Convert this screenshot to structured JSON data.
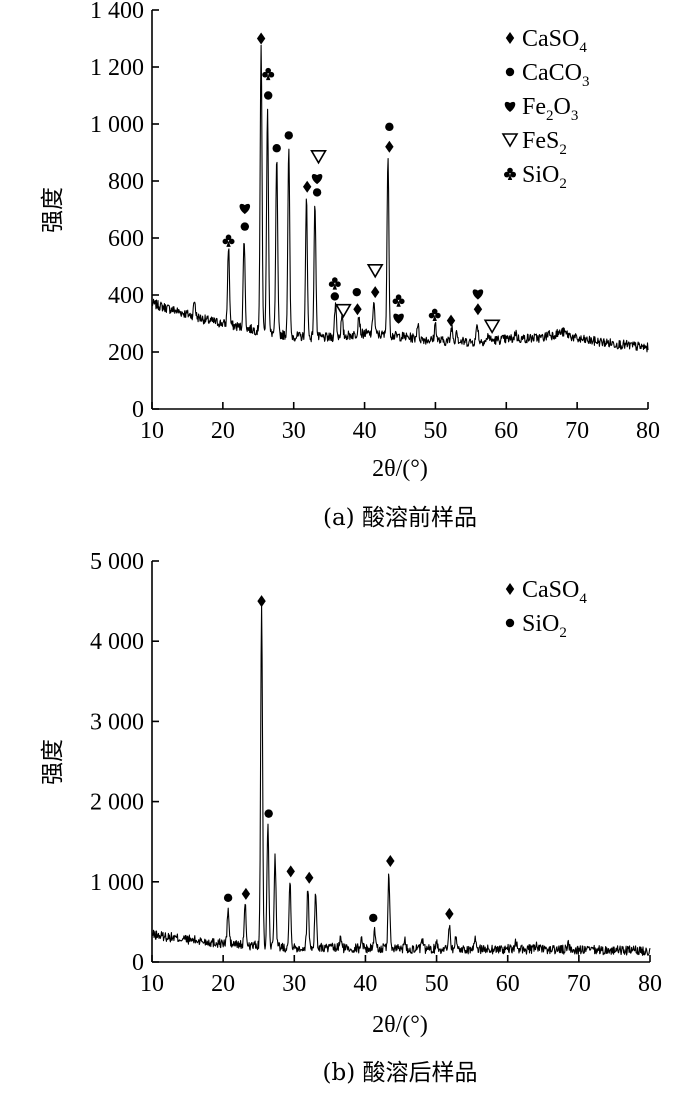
{
  "chart_data": [
    {
      "type": "line",
      "caption": "(a) 酸溶前样品",
      "xlabel": "2θ/(°)",
      "ylabel": "强度",
      "xlim": [
        10,
        80
      ],
      "ylim": [
        0,
        1400
      ],
      "xticks": [
        10,
        20,
        30,
        40,
        50,
        60,
        70,
        80
      ],
      "xtick_labels": [
        "10",
        "20",
        "30",
        "40",
        "50",
        "60",
        "70",
        "80"
      ],
      "yticks": [
        0,
        200,
        400,
        600,
        800,
        1000,
        1200,
        1400
      ],
      "ytick_labels": [
        "0",
        "200",
        "400",
        "600",
        "800",
        "1 000",
        "1 200",
        "1 400"
      ],
      "legend_position": "top-right",
      "legend": [
        {
          "symbol": "diamond",
          "name": "CaSO",
          "sub": "4"
        },
        {
          "symbol": "circle",
          "name": "CaCO",
          "sub": "3"
        },
        {
          "symbol": "heart",
          "name": "Fe",
          "sub": "2",
          "name2": "O",
          "sub2": "3"
        },
        {
          "symbol": "triangle-down",
          "name": "FeS",
          "sub": "2"
        },
        {
          "symbol": "club",
          "name": "SiO",
          "sub": "2"
        }
      ],
      "baseline": [
        [
          10,
          370
        ],
        [
          14,
          340
        ],
        [
          18,
          310
        ],
        [
          22,
          290
        ],
        [
          26,
          270
        ],
        [
          30,
          255
        ],
        [
          35,
          250
        ],
        [
          40,
          265
        ],
        [
          45,
          255
        ],
        [
          50,
          240
        ],
        [
          55,
          235
        ],
        [
          60,
          245
        ],
        [
          65,
          250
        ],
        [
          68,
          270
        ],
        [
          70,
          245
        ],
        [
          75,
          230
        ],
        [
          80,
          215
        ]
      ],
      "peaks": [
        {
          "x": 16.0,
          "y": 380
        },
        {
          "x": 20.8,
          "y": 570
        },
        {
          "x": 23.0,
          "y": 600
        },
        {
          "x": 25.4,
          "y": 1260
        },
        {
          "x": 26.3,
          "y": 1060
        },
        {
          "x": 27.6,
          "y": 880
        },
        {
          "x": 29.3,
          "y": 910
        },
        {
          "x": 31.8,
          "y": 740
        },
        {
          "x": 33.0,
          "y": 720
        },
        {
          "x": 35.9,
          "y": 370
        },
        {
          "x": 36.8,
          "y": 320
        },
        {
          "x": 39.2,
          "y": 330
        },
        {
          "x": 41.3,
          "y": 380
        },
        {
          "x": 43.3,
          "y": 880
        },
        {
          "x": 47.5,
          "y": 300
        },
        {
          "x": 50.0,
          "y": 300
        },
        {
          "x": 52.3,
          "y": 290
        },
        {
          "x": 53.0,
          "y": 280
        },
        {
          "x": 55.9,
          "y": 300
        },
        {
          "x": 57.5,
          "y": 260
        },
        {
          "x": 61.3,
          "y": 270
        },
        {
          "x": 66.0,
          "y": 270
        }
      ],
      "markers": [
        {
          "symbol": "club",
          "x": 20.8,
          "y": 590
        },
        {
          "symbol": "heart",
          "x": 23.1,
          "y": 705
        },
        {
          "symbol": "circle",
          "x": 23.1,
          "y": 640
        },
        {
          "symbol": "diamond",
          "x": 25.4,
          "y": 1300
        },
        {
          "symbol": "club",
          "x": 26.4,
          "y": 1175
        },
        {
          "symbol": "circle",
          "x": 26.4,
          "y": 1100
        },
        {
          "symbol": "circle",
          "x": 27.6,
          "y": 915
        },
        {
          "symbol": "circle",
          "x": 29.3,
          "y": 960
        },
        {
          "symbol": "diamond",
          "x": 31.9,
          "y": 780
        },
        {
          "symbol": "triangle-down",
          "x": 33.5,
          "y": 885
        },
        {
          "symbol": "heart",
          "x": 33.3,
          "y": 810
        },
        {
          "symbol": "circle",
          "x": 33.3,
          "y": 760
        },
        {
          "symbol": "club",
          "x": 35.8,
          "y": 440
        },
        {
          "symbol": "circle",
          "x": 35.8,
          "y": 395
        },
        {
          "symbol": "triangle-down",
          "x": 37.0,
          "y": 345
        },
        {
          "symbol": "circle",
          "x": 38.9,
          "y": 410
        },
        {
          "symbol": "diamond",
          "x": 39.0,
          "y": 350
        },
        {
          "symbol": "triangle-down",
          "x": 41.5,
          "y": 485
        },
        {
          "symbol": "diamond",
          "x": 41.5,
          "y": 410
        },
        {
          "symbol": "circle",
          "x": 43.5,
          "y": 990
        },
        {
          "symbol": "diamond",
          "x": 43.5,
          "y": 920
        },
        {
          "symbol": "club",
          "x": 44.8,
          "y": 380
        },
        {
          "symbol": "heart",
          "x": 44.8,
          "y": 320
        },
        {
          "symbol": "club",
          "x": 49.9,
          "y": 330
        },
        {
          "symbol": "diamond",
          "x": 52.2,
          "y": 310
        },
        {
          "symbol": "heart",
          "x": 56.0,
          "y": 405
        },
        {
          "symbol": "diamond",
          "x": 56.0,
          "y": 350
        },
        {
          "symbol": "triangle-down",
          "x": 58.0,
          "y": 290
        }
      ]
    },
    {
      "type": "line",
      "caption": "(b) 酸溶后样品",
      "xlabel": "2θ/(°)",
      "ylabel": "强度",
      "xlim": [
        10,
        80
      ],
      "ylim": [
        0,
        5000
      ],
      "xticks": [
        10,
        20,
        30,
        40,
        50,
        60,
        70,
        80
      ],
      "xtick_labels": [
        "10",
        "20",
        "30",
        "40",
        "50",
        "60",
        "70",
        "80"
      ],
      "yticks": [
        0,
        1000,
        2000,
        3000,
        4000,
        5000
      ],
      "ytick_labels": [
        "0",
        "1 000",
        "2 000",
        "3 000",
        "4 000",
        "5 000"
      ],
      "legend_position": "top-right",
      "legend": [
        {
          "symbol": "diamond",
          "name": "CaSO",
          "sub": "4"
        },
        {
          "symbol": "circle",
          "name": "SiO",
          "sub": "2"
        }
      ],
      "baseline": [
        [
          10,
          340
        ],
        [
          15,
          280
        ],
        [
          20,
          230
        ],
        [
          25,
          200
        ],
        [
          30,
          180
        ],
        [
          40,
          170
        ],
        [
          50,
          160
        ],
        [
          60,
          160
        ],
        [
          70,
          150
        ],
        [
          80,
          140
        ]
      ],
      "peaks": [
        {
          "x": 20.7,
          "y": 650
        },
        {
          "x": 23.1,
          "y": 700
        },
        {
          "x": 25.4,
          "y": 4400
        },
        {
          "x": 26.3,
          "y": 1700
        },
        {
          "x": 27.3,
          "y": 1320
        },
        {
          "x": 29.4,
          "y": 1020
        },
        {
          "x": 31.9,
          "y": 920
        },
        {
          "x": 33.0,
          "y": 850
        },
        {
          "x": 36.5,
          "y": 300
        },
        {
          "x": 39.5,
          "y": 300
        },
        {
          "x": 41.3,
          "y": 400
        },
        {
          "x": 43.3,
          "y": 1110
        },
        {
          "x": 45.5,
          "y": 280
        },
        {
          "x": 48.0,
          "y": 250
        },
        {
          "x": 50.0,
          "y": 250
        },
        {
          "x": 51.8,
          "y": 480
        },
        {
          "x": 52.7,
          "y": 300
        },
        {
          "x": 55.5,
          "y": 280
        },
        {
          "x": 61.2,
          "y": 250
        },
        {
          "x": 64.0,
          "y": 230
        },
        {
          "x": 68.5,
          "y": 250
        }
      ],
      "markers": [
        {
          "symbol": "circle",
          "x": 20.7,
          "y": 800
        },
        {
          "symbol": "diamond",
          "x": 23.2,
          "y": 850
        },
        {
          "symbol": "diamond",
          "x": 25.4,
          "y": 4500
        },
        {
          "symbol": "circle",
          "x": 26.4,
          "y": 1850
        },
        {
          "symbol": "diamond",
          "x": 29.5,
          "y": 1130
        },
        {
          "symbol": "diamond",
          "x": 32.1,
          "y": 1050
        },
        {
          "symbol": "circle",
          "x": 41.1,
          "y": 550
        },
        {
          "symbol": "diamond",
          "x": 43.5,
          "y": 1260
        },
        {
          "symbol": "diamond",
          "x": 51.8,
          "y": 600
        }
      ]
    }
  ]
}
